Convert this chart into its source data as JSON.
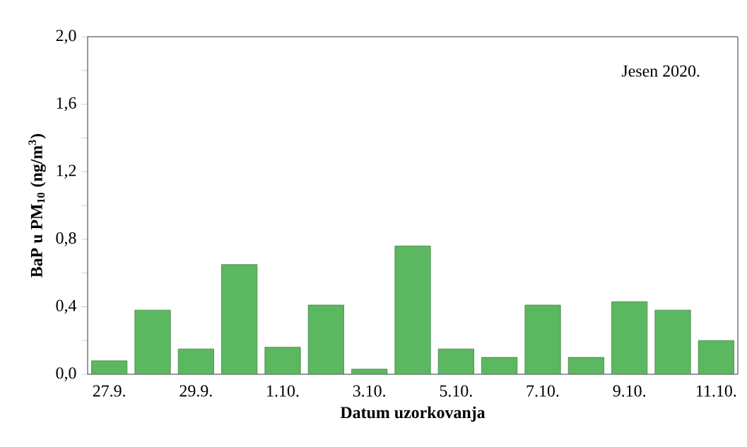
{
  "chart_data": {
    "type": "bar",
    "xlabel": "Datum uzorkovanja",
    "ylabel": "BaP u PM$_{10}$ (ng/m$^{3}$)",
    "annotations": [
      "Jesen 2020."
    ],
    "categories": [
      "27.9.",
      null,
      "29.9.",
      null,
      "1.10.",
      null,
      "3.10.",
      null,
      "5.10.",
      null,
      "7.10.",
      null,
      "9.10.",
      null,
      "11.10."
    ],
    "values": [
      0.08,
      0.38,
      0.15,
      0.65,
      0.16,
      0.41,
      0.03,
      0.76,
      0.15,
      0.1,
      0.41,
      0.1,
      0.43,
      0.38,
      0.2
    ],
    "color": "#5cb860",
    "ylim": [
      0,
      2
    ],
    "yticks": [
      {
        "value": 0,
        "label": "0,0"
      },
      {
        "value": 0.2,
        "label": null
      },
      {
        "value": 0.4,
        "label": "0,4"
      },
      {
        "value": 0.6,
        "label": null
      },
      {
        "value": 0.8,
        "label": "0,8"
      },
      {
        "value": 1.0,
        "label": null
      },
      {
        "value": 1.2,
        "label": "1,2"
      },
      {
        "value": 1.4,
        "label": null
      },
      {
        "value": 1.6,
        "label": "1,6"
      },
      {
        "value": 1.8,
        "label": null
      },
      {
        "value": 2.0,
        "label": "2,0"
      }
    ]
  }
}
